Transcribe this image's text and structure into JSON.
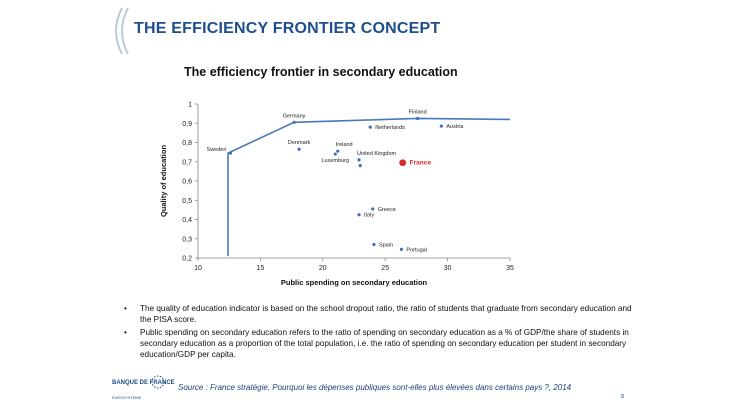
{
  "slide": {
    "title": "THE EFFICIENCY FRONTIER CONCEPT",
    "page_number": "8"
  },
  "chart_data": {
    "type": "scatter",
    "title": "The efficiency frontier in secondary education",
    "xlabel": "Public spending on secondary education",
    "ylabel": "Quality of education",
    "xlim": [
      10,
      35
    ],
    "ylim": [
      0.2,
      1
    ],
    "xticks": [
      10,
      15,
      20,
      25,
      30,
      35
    ],
    "xtick_labels": [
      "10",
      "15",
      "20",
      "25",
      "30",
      "35"
    ],
    "yticks": [
      0.2,
      0.3,
      0.4,
      0.5,
      0.6,
      0.7,
      0.8,
      0.9,
      1
    ],
    "ytick_labels": [
      "0,2",
      "0,3",
      "0,4",
      "0,5",
      "0,6",
      "0,7",
      "0,8",
      "0,9",
      "1"
    ],
    "grid": false,
    "highlight_color": "#d62b2b",
    "point_color": "#3a6fbf",
    "frontier_color": "#4a7ab8",
    "points": [
      {
        "label": "Sweden",
        "x": 12.6,
        "y": 0.745,
        "label_pos": "left"
      },
      {
        "label": "Germany",
        "x": 17.7,
        "y": 0.905,
        "label_pos": "above"
      },
      {
        "label": "Denmark",
        "x": 18.1,
        "y": 0.765,
        "label_pos": "above"
      },
      {
        "label": "Ireland",
        "x": 21.2,
        "y": 0.755,
        "label_pos": "above-right"
      },
      {
        "label": "Luxemburg",
        "x": 21.0,
        "y": 0.74,
        "label_pos": "below"
      },
      {
        "label": "United Kingdom",
        "x": 22.9,
        "y": 0.71,
        "label_pos": "above-right"
      },
      {
        "label": "",
        "x": 23.0,
        "y": 0.68,
        "label_pos": "none"
      },
      {
        "label": "Netherlands",
        "x": 23.8,
        "y": 0.88,
        "label_pos": "right"
      },
      {
        "label": "Finland",
        "x": 27.6,
        "y": 0.925,
        "label_pos": "above"
      },
      {
        "label": "Austria",
        "x": 29.5,
        "y": 0.885,
        "label_pos": "right"
      },
      {
        "label": "Greece",
        "x": 24.0,
        "y": 0.455,
        "label_pos": "right"
      },
      {
        "label": "Italy",
        "x": 22.9,
        "y": 0.425,
        "label_pos": "right"
      },
      {
        "label": "Spain",
        "x": 24.1,
        "y": 0.27,
        "label_pos": "right"
      },
      {
        "label": "Portugal",
        "x": 26.3,
        "y": 0.245,
        "label_pos": "right"
      },
      {
        "label": "France",
        "x": 26.4,
        "y": 0.695,
        "label_pos": "right",
        "highlight": true
      }
    ],
    "frontier": [
      {
        "x": 12.4,
        "y": 0.21
      },
      {
        "x": 12.4,
        "y": 0.745
      },
      {
        "x": 17.7,
        "y": 0.905
      },
      {
        "x": 27.6,
        "y": 0.925
      },
      {
        "x": 35,
        "y": 0.92
      }
    ]
  },
  "notes": [
    "The quality of education indicator is based on the school dropout ratio, the ratio of students that graduate from secondary education and the PISA score.",
    "Public spending on secondary education refers to the ratio of spending on secondary education as a % of GDP/the share of students in secondary education as a proportion of the total population, i.e. the ratio of spending on secondary education per student in secondary education/GDP per capita."
  ],
  "footer": {
    "logo_name": "BANQUE DE FRANCE",
    "logo_sub": "EUROSYSTÈME",
    "source": "Source : France stratégie, Pourquoi les dépenses publiques sont-elles plus élevées dans certains pays ?, 2014"
  }
}
